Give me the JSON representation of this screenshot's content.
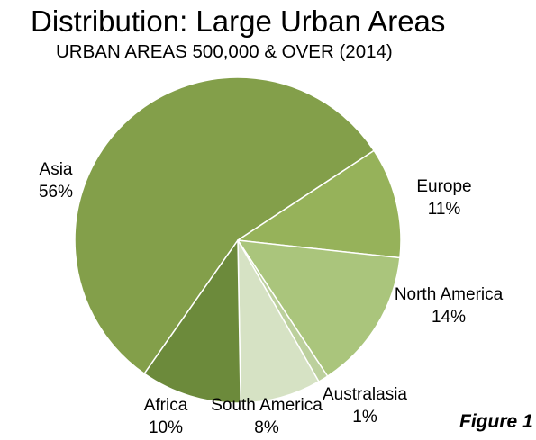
{
  "header": {
    "title": "Distribution: Large Urban Areas",
    "subtitle": "URBAN AREAS 500,000 & OVER (2014)"
  },
  "footer": {
    "figure_label": "Figure 1"
  },
  "chart_data": {
    "type": "pie",
    "title": "Distribution: Large Urban Areas",
    "subtitle": "URBAN AREAS 500,000 & OVER (2014)",
    "legend": "none",
    "slices": [
      {
        "label": "Asia",
        "value_label": "56%",
        "value": 56,
        "color": "#839f4a"
      },
      {
        "label": "Europe",
        "value_label": "11%",
        "value": 11,
        "color": "#96b25a"
      },
      {
        "label": "North America",
        "value_label": "14%",
        "value": 14,
        "color": "#aac57c"
      },
      {
        "label": "Australasia",
        "value_label": "1%",
        "value": 1,
        "color": "#bcd09d"
      },
      {
        "label": "South America",
        "value_label": "8%",
        "value": 8,
        "color": "#d6e2c4"
      },
      {
        "label": "Africa",
        "value_label": "10%",
        "value": 10,
        "color": "#6c8a3b"
      }
    ]
  }
}
